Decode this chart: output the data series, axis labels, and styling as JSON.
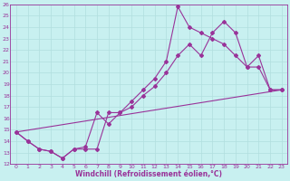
{
  "xlabel": "Windchill (Refroidissement éolien,°C)",
  "bg_color": "#c8f0f0",
  "grid_color": "#b0dede",
  "line_color": "#993399",
  "xlim": [
    -0.5,
    23.5
  ],
  "ylim": [
    12,
    26
  ],
  "xticks": [
    0,
    1,
    2,
    3,
    4,
    5,
    6,
    7,
    8,
    9,
    10,
    11,
    12,
    13,
    14,
    15,
    16,
    17,
    18,
    19,
    20,
    21,
    22,
    23
  ],
  "yticks": [
    12,
    13,
    14,
    15,
    16,
    17,
    18,
    19,
    20,
    21,
    22,
    23,
    24,
    25,
    26
  ],
  "line1_x": [
    0,
    1,
    2,
    3,
    4,
    5,
    6,
    7,
    8,
    9,
    10,
    11,
    12,
    13,
    14,
    15,
    16,
    17,
    18,
    19,
    20,
    21,
    22,
    23
  ],
  "line1_y": [
    14.8,
    14.0,
    13.3,
    13.1,
    12.5,
    13.3,
    13.5,
    16.5,
    15.5,
    16.5,
    17.5,
    18.5,
    19.5,
    21.0,
    25.8,
    24.0,
    23.5,
    23.0,
    22.5,
    21.5,
    20.5,
    21.5,
    18.5,
    18.5
  ],
  "line2_x": [
    0,
    1,
    2,
    3,
    4,
    5,
    6,
    7,
    8,
    9,
    10,
    11,
    12,
    13,
    14,
    15,
    16,
    17,
    18,
    19,
    20,
    21,
    22,
    23
  ],
  "line2_y": [
    14.8,
    14.0,
    13.3,
    13.1,
    12.5,
    13.3,
    13.3,
    13.3,
    16.5,
    16.5,
    17.0,
    18.0,
    18.8,
    20.0,
    21.5,
    22.5,
    21.5,
    23.5,
    24.5,
    23.5,
    20.5,
    20.5,
    18.5,
    18.5
  ],
  "line3_x": [
    0,
    23
  ],
  "line3_y": [
    14.8,
    18.5
  ],
  "marker": "D",
  "markersize": 2.0,
  "linewidth": 0.8
}
